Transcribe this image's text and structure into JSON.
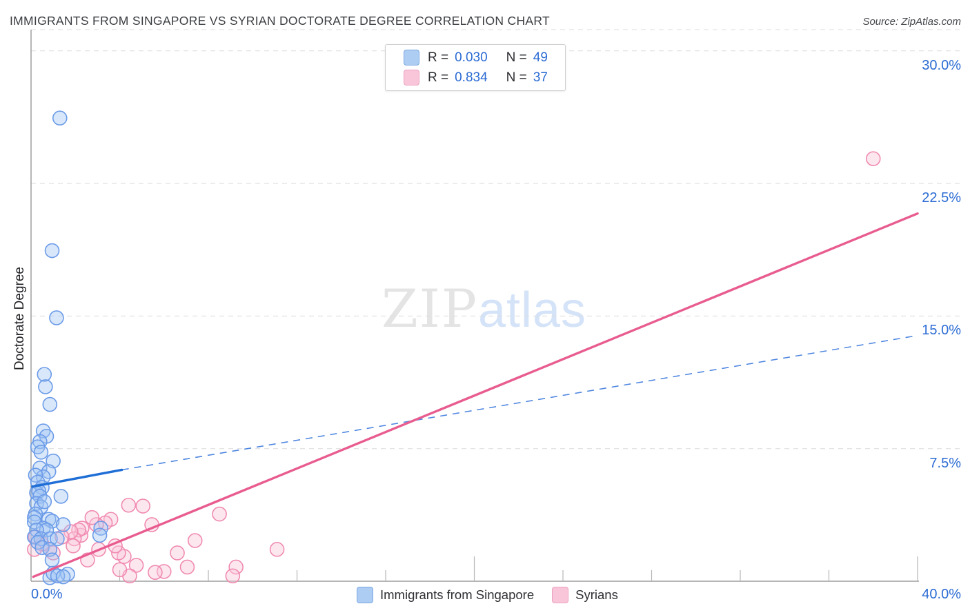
{
  "header": {
    "title": "IMMIGRANTS FROM SINGAPORE VS SYRIAN DOCTORATE DEGREE CORRELATION CHART",
    "source": "Source: ZipAtlas.com"
  },
  "watermark": {
    "zip": "ZIP",
    "atlas": "atlas"
  },
  "axes": {
    "y_label": "Doctorate Degree"
  },
  "legend_box": {
    "rows": [
      {
        "r_label": "R =",
        "r": "0.030",
        "n_label": "N =",
        "n": "49",
        "color": "#aecdf2"
      },
      {
        "r_label": "R =",
        "r": "0.834",
        "n_label": "N =",
        "n": "37",
        "color": "#f9c6d9"
      }
    ]
  },
  "bottom_legend": [
    {
      "label": "Immigrants from Singapore",
      "color": "#aecdf2"
    },
    {
      "label": "Syrians",
      "color": "#f9c6d9"
    }
  ],
  "chart_data": {
    "type": "scatter",
    "title": "Immigrants from Singapore vs Syrian Doctorate Degree",
    "xlabel": "",
    "ylabel": "Doctorate Degree",
    "xlim": [
      0,
      40
    ],
    "ylim": [
      0,
      31.2
    ],
    "grid": "horizontal-dashed",
    "x_tick_step": 4,
    "x_ticks_labeled": [
      {
        "value": 0,
        "label": "0.0%"
      },
      {
        "value": 40,
        "label": "40.0%"
      }
    ],
    "y_ticks": [
      {
        "value": 30,
        "label": "30.0%"
      },
      {
        "value": 22.5,
        "label": "22.5%"
      },
      {
        "value": 15,
        "label": "15.0%"
      },
      {
        "value": 7.5,
        "label": "7.5%"
      }
    ],
    "series": [
      {
        "name": "Immigrants from Singapore",
        "r": 0.03,
        "n": 49,
        "stroke": "#6b9be8",
        "fill": "rgba(158,195,242,0.40)",
        "points": [
          [
            1.3,
            26.2
          ],
          [
            0.95,
            18.7
          ],
          [
            1.15,
            14.9
          ],
          [
            0.6,
            11.7
          ],
          [
            0.65,
            11.0
          ],
          [
            0.85,
            10.0
          ],
          [
            0.55,
            8.5
          ],
          [
            0.7,
            8.2
          ],
          [
            0.4,
            7.9
          ],
          [
            0.3,
            7.6
          ],
          [
            0.45,
            7.3
          ],
          [
            1.0,
            6.8
          ],
          [
            0.4,
            6.4
          ],
          [
            0.8,
            6.2
          ],
          [
            0.55,
            5.9
          ],
          [
            0.2,
            6.0
          ],
          [
            0.3,
            5.6
          ],
          [
            0.5,
            5.3
          ],
          [
            0.25,
            5.0
          ],
          [
            0.35,
            5.1
          ],
          [
            0.4,
            4.8
          ],
          [
            1.35,
            4.8
          ],
          [
            0.25,
            4.4
          ],
          [
            0.45,
            4.2
          ],
          [
            0.6,
            4.5
          ],
          [
            0.2,
            3.8
          ],
          [
            0.15,
            3.6
          ],
          [
            0.8,
            3.5
          ],
          [
            0.95,
            3.4
          ],
          [
            1.45,
            3.2
          ],
          [
            0.15,
            3.35
          ],
          [
            0.55,
            3.0
          ],
          [
            0.7,
            2.9
          ],
          [
            0.25,
            2.9
          ],
          [
            3.15,
            3.0
          ],
          [
            3.1,
            2.6
          ],
          [
            0.15,
            2.5
          ],
          [
            0.45,
            2.4
          ],
          [
            0.87,
            2.4
          ],
          [
            1.18,
            2.4
          ],
          [
            0.31,
            2.2
          ],
          [
            0.5,
            1.9
          ],
          [
            0.85,
            1.8
          ],
          [
            0.95,
            1.2
          ],
          [
            0.85,
            0.2
          ],
          [
            1.0,
            0.45
          ],
          [
            1.65,
            0.4
          ],
          [
            1.2,
            0.3
          ],
          [
            1.45,
            0.25
          ]
        ]
      },
      {
        "name": "Syrians",
        "r": 0.834,
        "n": 37,
        "stroke": "#f08ab0",
        "fill": "rgba(250,198,216,0.42)",
        "points": [
          [
            38.0,
            23.9
          ],
          [
            11.1,
            1.8
          ],
          [
            9.25,
            0.8
          ],
          [
            9.1,
            0.3
          ],
          [
            8.5,
            3.8
          ],
          [
            7.4,
            2.3
          ],
          [
            7.05,
            0.8
          ],
          [
            6.6,
            1.6
          ],
          [
            6.0,
            0.55
          ],
          [
            5.6,
            0.5
          ],
          [
            5.45,
            3.2
          ],
          [
            5.05,
            4.25
          ],
          [
            4.75,
            0.9
          ],
          [
            4.45,
            0.3
          ],
          [
            4.4,
            4.3
          ],
          [
            4.2,
            1.4
          ],
          [
            4.0,
            0.65
          ],
          [
            3.95,
            1.6
          ],
          [
            3.8,
            2.0
          ],
          [
            3.6,
            3.5
          ],
          [
            3.35,
            3.3
          ],
          [
            3.05,
            1.8
          ],
          [
            2.95,
            3.2
          ],
          [
            2.75,
            3.6
          ],
          [
            2.55,
            1.2
          ],
          [
            2.25,
            2.6
          ],
          [
            2.3,
            3.0
          ],
          [
            2.15,
            2.9
          ],
          [
            1.95,
            2.4
          ],
          [
            1.9,
            2.0
          ],
          [
            1.8,
            2.8
          ],
          [
            1.4,
            2.5
          ],
          [
            1.0,
            1.6
          ],
          [
            0.85,
            1.8
          ],
          [
            0.5,
            2.1
          ],
          [
            0.2,
            2.5
          ],
          [
            0.15,
            1.8
          ]
        ]
      }
    ],
    "trendlines": [
      {
        "series": "Immigrants from Singapore",
        "color": "#1e6ed6",
        "dash_color": "#4f86e0",
        "solid": [
          [
            0.06,
            5.35
          ],
          [
            4.1,
            6.3
          ]
        ],
        "dashed": [
          [
            4.1,
            6.3
          ],
          [
            40,
            13.9
          ]
        ]
      },
      {
        "series": "Syrians",
        "color": "#e85c8f",
        "solid": [
          [
            0.1,
            0.25
          ],
          [
            40,
            20.8
          ]
        ]
      }
    ]
  }
}
